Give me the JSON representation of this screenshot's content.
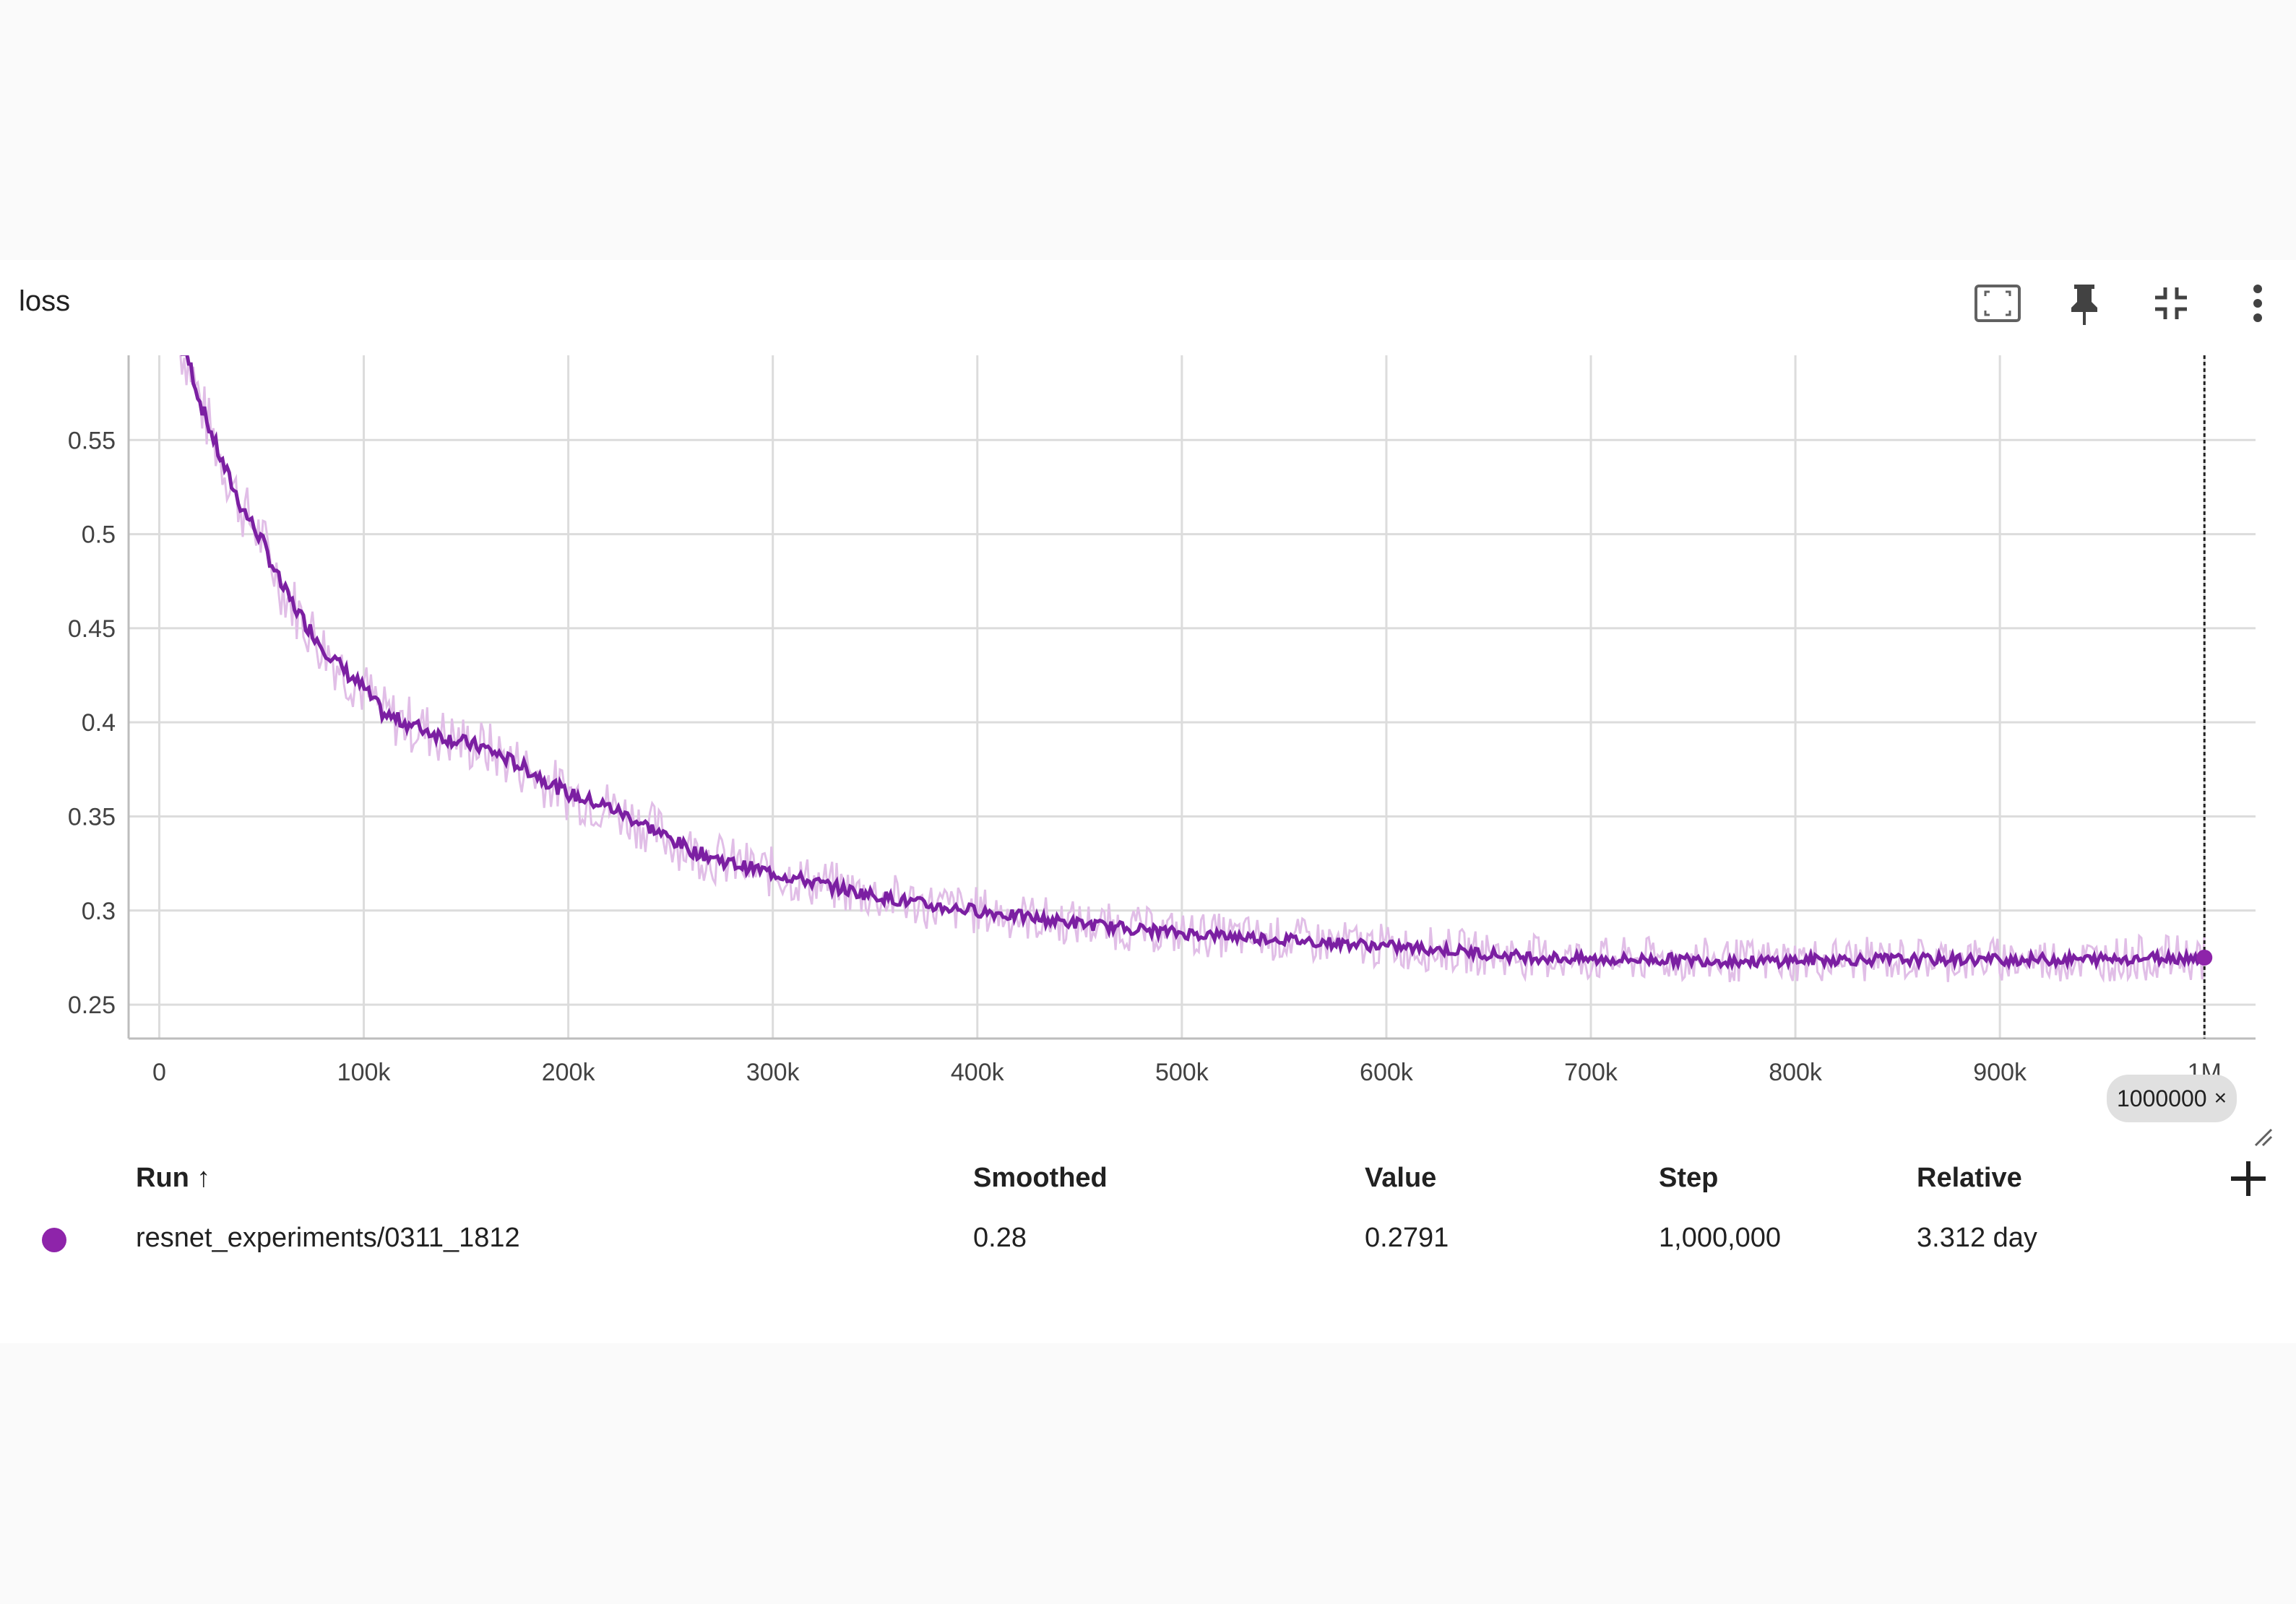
{
  "card": {
    "title": "loss",
    "toolbar": [
      {
        "name": "fit-domain-icon"
      },
      {
        "name": "pin-icon"
      },
      {
        "name": "collapse-icon"
      },
      {
        "name": "more-vert-icon"
      }
    ]
  },
  "chart_data": {
    "type": "line",
    "title": "loss",
    "xlabel": "",
    "ylabel": "",
    "x_ticks": [
      "0",
      "100k",
      "200k",
      "300k",
      "400k",
      "500k",
      "600k",
      "700k",
      "800k",
      "900k",
      "1M"
    ],
    "y_ticks": [
      "0.25",
      "0.3",
      "0.35",
      "0.4",
      "0.45",
      "0.5",
      "0.55"
    ],
    "xlim": [
      -15000,
      1025000
    ],
    "ylim": [
      0.232,
      0.595
    ],
    "grid": true,
    "colors": {
      "smoothed": "#7b1fa2",
      "raw": "#e1bee7",
      "dot": "#8e24aa"
    },
    "series": [
      {
        "name": "resnet_experiments/0311_1812",
        "x": [
          10000,
          15000,
          20000,
          30000,
          40000,
          50000,
          60000,
          70000,
          80000,
          90000,
          100000,
          110000,
          120000,
          140000,
          160000,
          180000,
          200000,
          220000,
          240000,
          260000,
          280000,
          300000,
          320000,
          340000,
          360000,
          380000,
          400000,
          420000,
          450000,
          480000,
          500000,
          530000,
          560000,
          600000,
          630000,
          660000,
          700000,
          740000,
          780000,
          820000,
          860000,
          900000,
          940000,
          980000,
          1000000
        ],
        "y": [
          0.6,
          0.59,
          0.57,
          0.54,
          0.515,
          0.497,
          0.472,
          0.455,
          0.44,
          0.428,
          0.418,
          0.404,
          0.4,
          0.392,
          0.386,
          0.375,
          0.362,
          0.355,
          0.344,
          0.332,
          0.325,
          0.32,
          0.315,
          0.31,
          0.306,
          0.302,
          0.3,
          0.297,
          0.293,
          0.29,
          0.288,
          0.286,
          0.284,
          0.281,
          0.279,
          0.276,
          0.274,
          0.274,
          0.273,
          0.274,
          0.274,
          0.274,
          0.274,
          0.275,
          0.275
        ]
      }
    ],
    "cursor_step": 1000000
  },
  "cursor_badge": {
    "label": "1000000",
    "close": "×"
  },
  "table": {
    "headers": {
      "run": "Run ↑",
      "smoothed": "Smoothed",
      "value": "Value",
      "step": "Step",
      "relative": "Relative"
    },
    "rows": [
      {
        "run": "resnet_experiments/0311_1812",
        "smoothed": "0.28",
        "value": "0.2791",
        "step": "1,000,000",
        "relative": "3.312 day",
        "color": "#8e24aa"
      }
    ]
  }
}
